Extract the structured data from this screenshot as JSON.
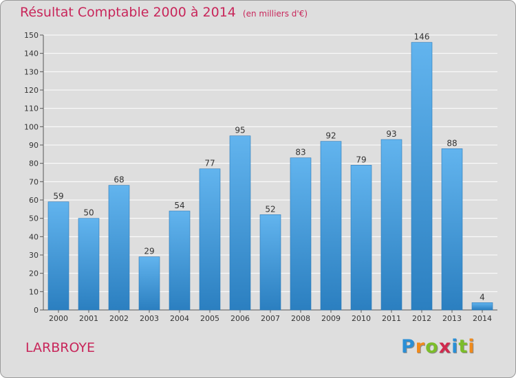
{
  "title": "Résultat Comptable 2000 à 2014",
  "unit": "(en milliers d'€)",
  "commune": "LARBROYE",
  "logo": {
    "letters": [
      "P",
      "r",
      "o",
      "x",
      "i",
      "t",
      "i"
    ],
    "colors": [
      "#2a8fd6",
      "#f08a1c",
      "#7cbd2a",
      "#d02a4e",
      "#2a8fd6",
      "#7cbd2a",
      "#f08a1c"
    ]
  },
  "colors": {
    "title": "#c8265a",
    "bar_light": "#62b4ee",
    "bar_dark": "#2b7fc0",
    "background": "#dedede",
    "grid": "#ffffff"
  },
  "chart_data": {
    "type": "bar",
    "title": "Résultat Comptable 2000 à 2014",
    "ylabel": "(en milliers d'€)",
    "xlabel": "",
    "categories": [
      "2000",
      "2001",
      "2002",
      "2003",
      "2004",
      "2005",
      "2006",
      "2007",
      "2008",
      "2009",
      "2010",
      "2011",
      "2012",
      "2013",
      "2014"
    ],
    "values": [
      59,
      50,
      68,
      29,
      54,
      77,
      95,
      52,
      83,
      92,
      79,
      93,
      146,
      88,
      4
    ],
    "ylim": [
      0,
      150
    ],
    "yticks": [
      0,
      10,
      20,
      30,
      40,
      50,
      60,
      70,
      80,
      90,
      100,
      110,
      120,
      130,
      140,
      150
    ],
    "grid": true
  }
}
